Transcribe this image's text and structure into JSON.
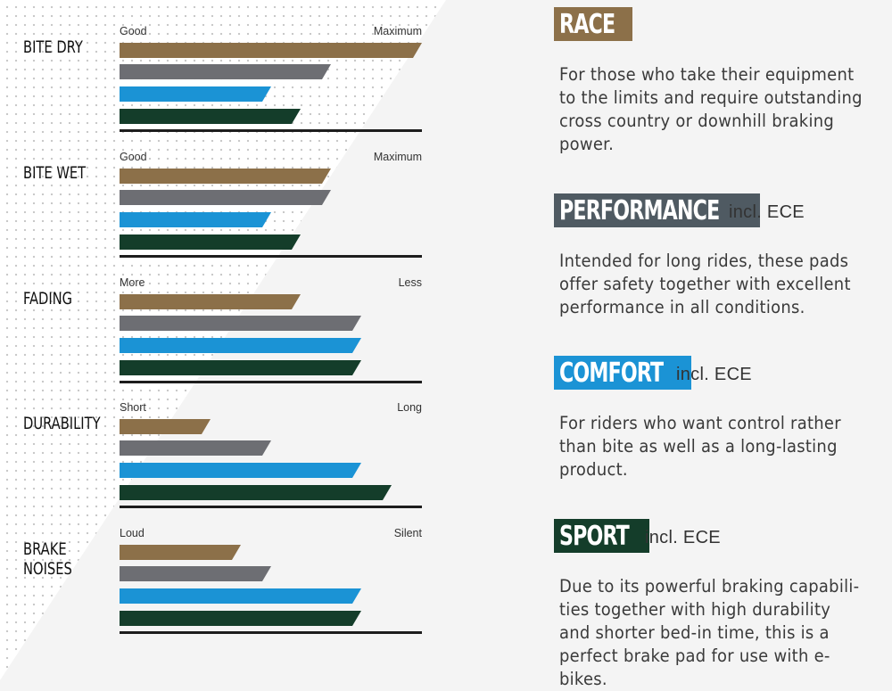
{
  "colors": {
    "race": "#8c7049",
    "performance": "#6d6e73",
    "comfort": "#1b93d5",
    "sport": "#143d2a"
  },
  "chart_data": {
    "type": "bar",
    "orientation": "horizontal",
    "series": [
      {
        "name": "RACE",
        "color": "#8c7049"
      },
      {
        "name": "PERFORMANCE",
        "color": "#6d6e73"
      },
      {
        "name": "COMFORT",
        "color": "#1b93d5"
      },
      {
        "name": "SPORT",
        "color": "#143d2a"
      }
    ],
    "metrics": [
      {
        "label": "BITE DRY",
        "low": "Good",
        "high": "Maximum",
        "values": [
          100,
          70,
          50,
          60
        ]
      },
      {
        "label": "BITE WET",
        "low": "Good",
        "high": "Maximum",
        "values": [
          70,
          70,
          50,
          60
        ]
      },
      {
        "label": "FADING",
        "low": "More",
        "high": "Less",
        "values": [
          60,
          80,
          80,
          80
        ]
      },
      {
        "label": "DURABILITY",
        "low": "Short",
        "high": "Long",
        "values": [
          30,
          50,
          80,
          90
        ]
      },
      {
        "label": "BRAKE\nNOISES",
        "low": "Loud",
        "high": "Silent",
        "values": [
          40,
          50,
          80,
          80
        ]
      }
    ],
    "xlim": [
      0,
      100
    ]
  },
  "legend": [
    {
      "name": "RACE",
      "ece": "",
      "description": "For those who take their equipment to the limits and require outstanding cross country or downhill braking power."
    },
    {
      "name": "PERFORMANCE",
      "ece": "incl. ECE",
      "description": "Intended for long rides, these pads offer safety together with excellent performance in all conditions."
    },
    {
      "name": "COMFORT",
      "ece": "incl. ECE",
      "description": "For riders who want control rather than bite as well as a long-lasting product."
    },
    {
      "name": "SPORT",
      "ece": "incl. ECE",
      "description": "Due to its powerful braking capabili-ties together with high durability and shorter bed-in time, this is a perfect brake pad for use with e-bikes."
    }
  ]
}
